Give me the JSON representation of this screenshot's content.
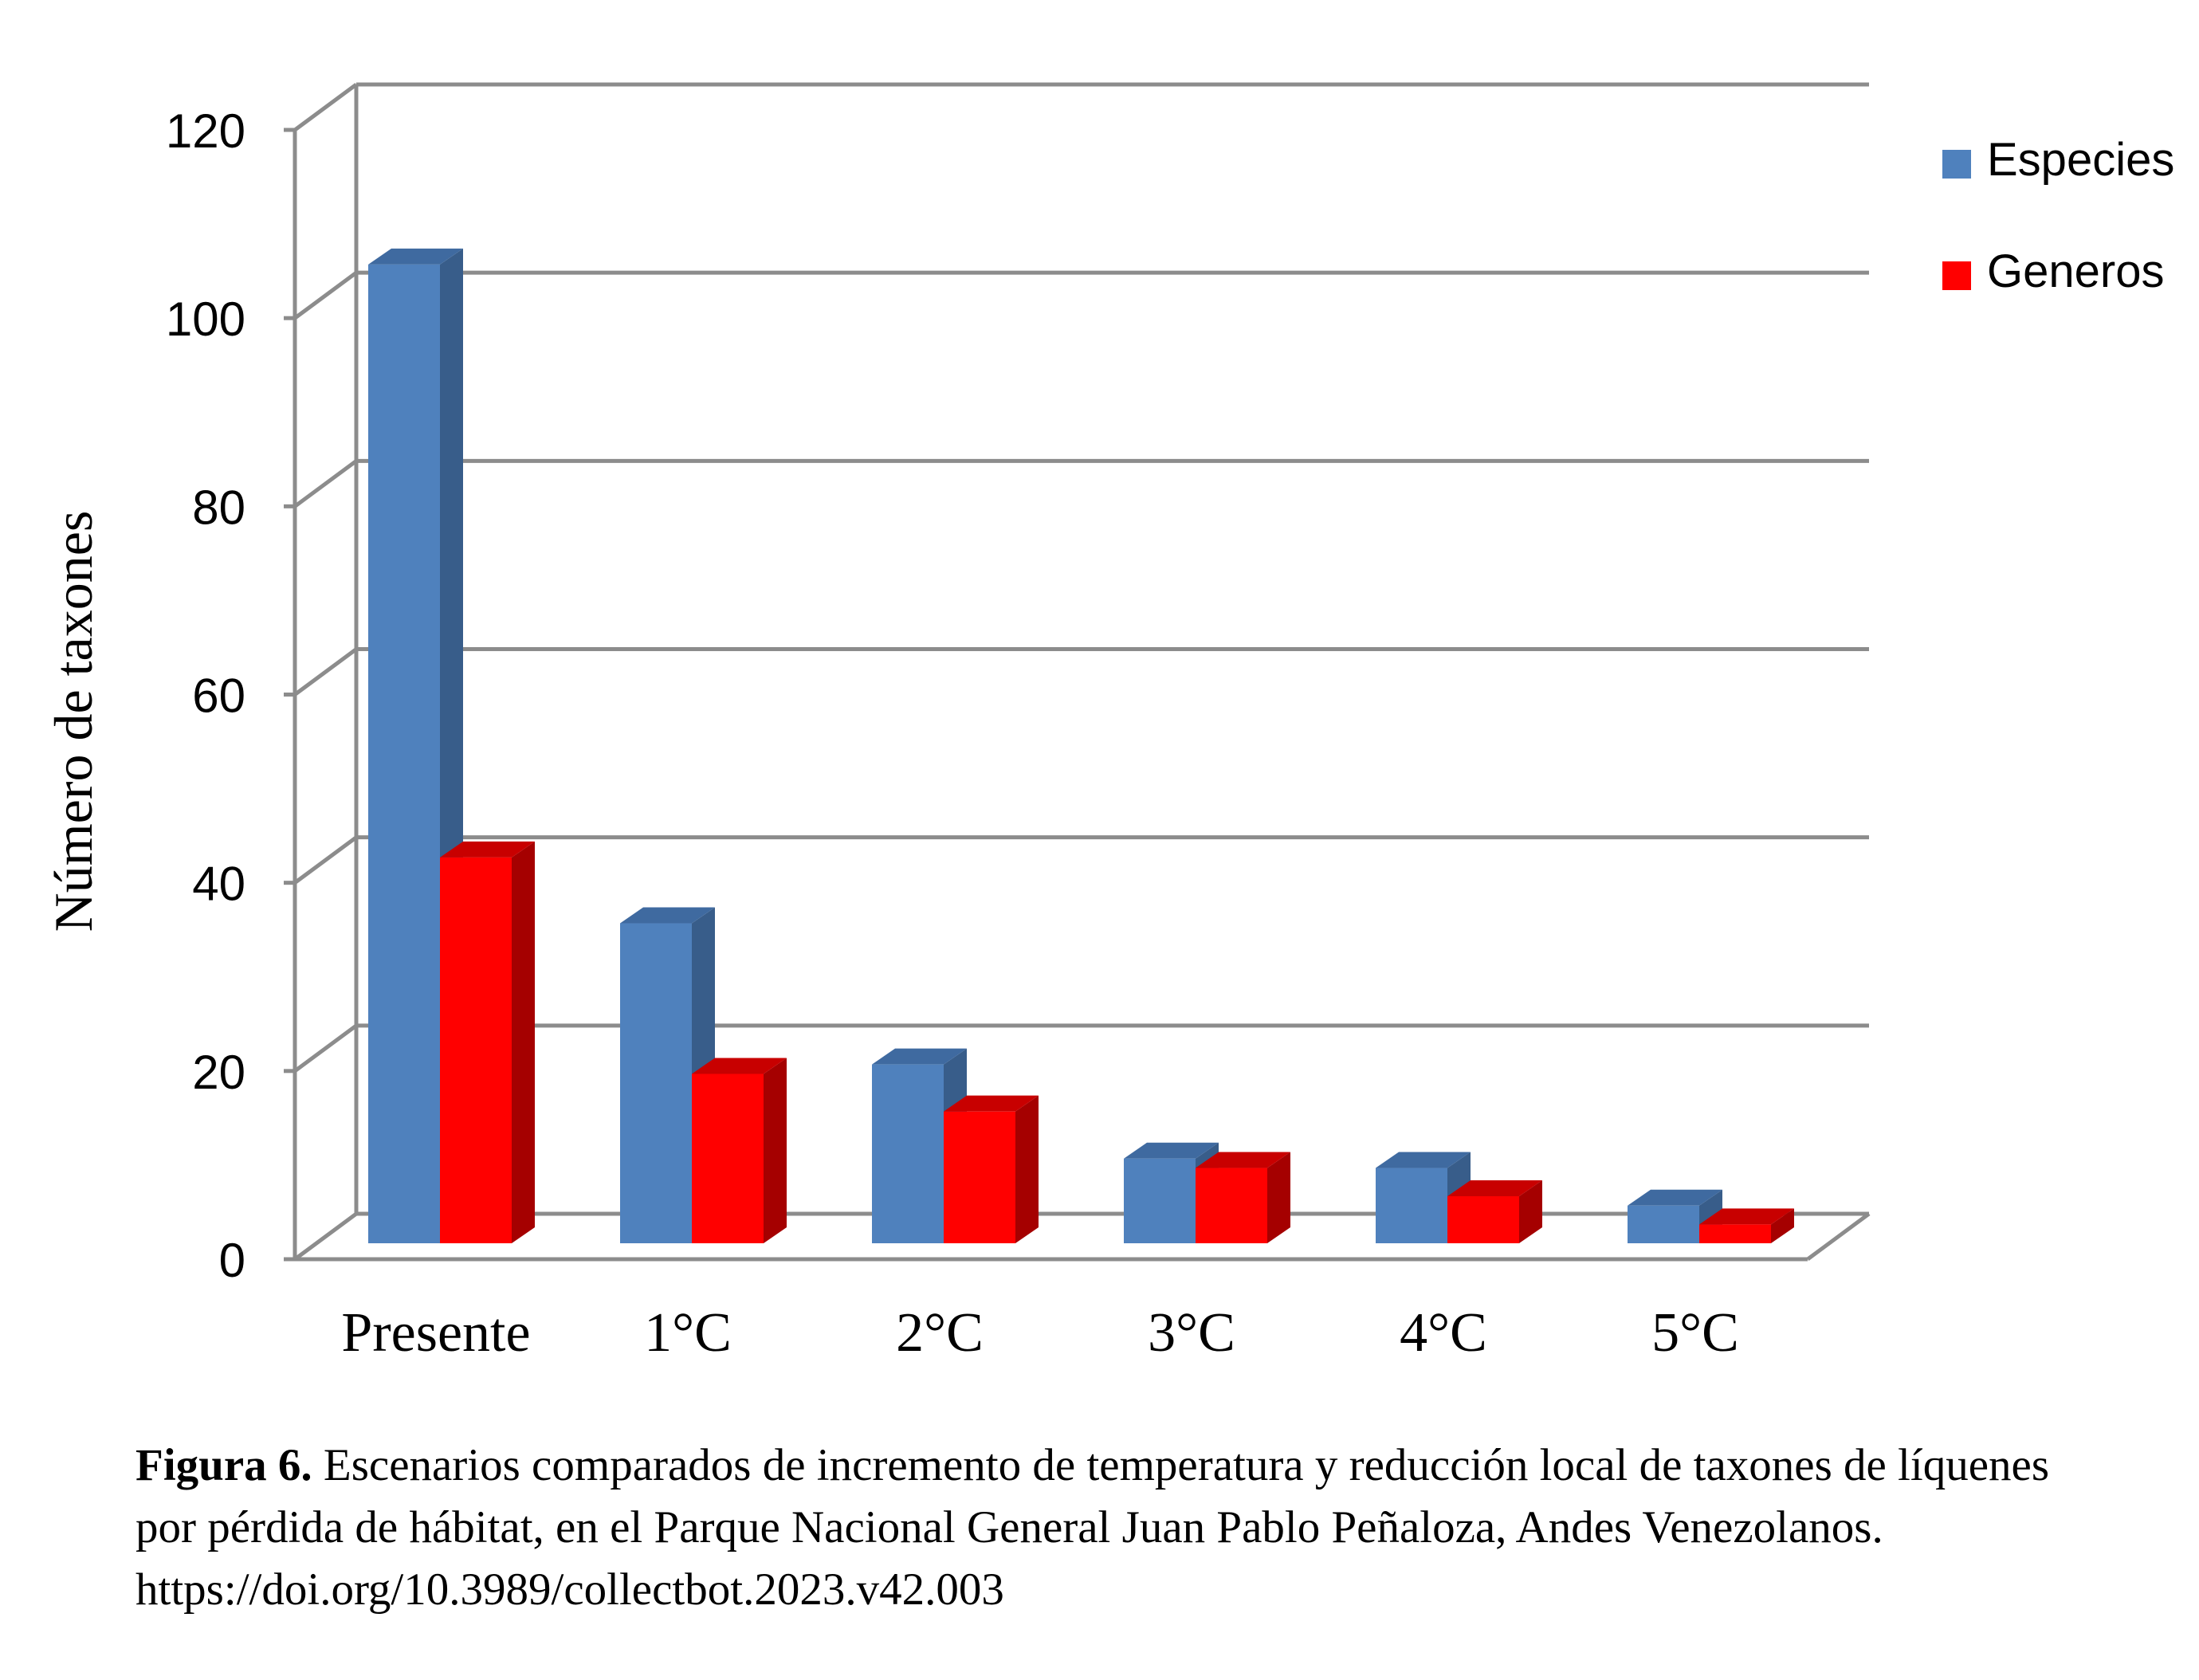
{
  "chart_data": {
    "type": "bar",
    "style": "3d-clustered-column",
    "categories": [
      "Presente",
      "1°C",
      "2°C",
      "3°C",
      "4°C",
      "5°C"
    ],
    "series": [
      {
        "name": "Especies",
        "values": [
          104,
          34,
          19,
          9,
          8,
          4
        ],
        "color": "#4F81BD",
        "side_color": "#385D8A",
        "top_color": "#3F6AA0"
      },
      {
        "name": "Generos",
        "values": [
          41,
          18,
          14,
          8,
          5,
          2
        ],
        "color": "#FF0000",
        "side_color": "#A50000",
        "top_color": "#C80000"
      }
    ],
    "ylabel": "Número de taxones",
    "xlabel": "",
    "ylim": [
      0,
      120
    ],
    "yticks": [
      "0",
      "20",
      "40",
      "60",
      "80",
      "100",
      "120"
    ],
    "grid": true,
    "legend_position": "top-right"
  },
  "caption": {
    "label": "Figura 6.",
    "text": " Escenarios comparados de incremento de temperatura y reducción local de taxones de líquenes por pérdida de hábitat, en el Parque Nacional General Juan Pablo Peñaloza, Andes Venezolanos. https://doi.org/10.3989/collectbot.2023.v42.003"
  }
}
